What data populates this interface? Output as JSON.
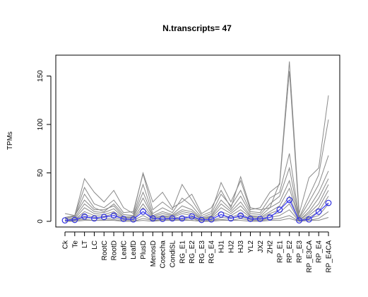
{
  "chart_data": {
    "type": "line",
    "title": "N.transcripts= 47",
    "xlabel": "",
    "ylabel": "TPMs",
    "ylim": [
      -5,
      170
    ],
    "yticks": [
      0,
      50,
      100,
      150
    ],
    "grid": false,
    "legend": "none",
    "categories": [
      "Ck",
      "Te",
      "LT",
      "LC",
      "RootC",
      "RootD",
      "LeafC",
      "LeafD",
      "PlusD",
      "MenosD",
      "Cosecha",
      "CondiSL",
      "RG_E1",
      "RG_E2",
      "RG_E3",
      "RG_E4",
      "HJ1",
      "HJ2",
      "HJ3",
      "YL2",
      "JX2",
      "ZH2",
      "RP_E1",
      "RP_E2",
      "RP_E3",
      "RP_E3CA",
      "RP_E4",
      "RP_E4CA"
    ],
    "series": [
      {
        "values": [
          8,
          6,
          44,
          30,
          20,
          32,
          14,
          8,
          50,
          20,
          30,
          14,
          20,
          28,
          8,
          14,
          32,
          14,
          46,
          14,
          12,
          14,
          40,
          165,
          8,
          45,
          55,
          130
        ]
      },
      {
        "values": [
          4,
          6,
          35,
          18,
          14,
          22,
          9,
          10,
          49,
          12,
          20,
          12,
          38,
          22,
          6,
          10,
          40,
          20,
          42,
          12,
          14,
          30,
          38,
          155,
          4,
          26,
          48,
          105
        ]
      },
      {
        "values": [
          3,
          5,
          28,
          14,
          10,
          18,
          7,
          6,
          38,
          8,
          14,
          9,
          24,
          16,
          4,
          8,
          28,
          16,
          32,
          10,
          9,
          24,
          30,
          70,
          3,
          20,
          38,
          68
        ]
      },
      {
        "values": [
          2,
          6,
          22,
          12,
          12,
          16,
          5,
          5,
          30,
          6,
          10,
          7,
          16,
          12,
          3,
          6,
          22,
          12,
          26,
          8,
          7,
          18,
          26,
          55,
          2,
          14,
          30,
          52
        ]
      },
      {
        "values": [
          1,
          4,
          18,
          10,
          9,
          13,
          4,
          4,
          24,
          5,
          8,
          6,
          12,
          10,
          2,
          5,
          18,
          10,
          20,
          6,
          5,
          14,
          20,
          42,
          1,
          10,
          24,
          44
        ]
      },
      {
        "values": [
          1,
          3,
          14,
          8,
          7,
          10,
          3,
          3,
          18,
          4,
          6,
          5,
          10,
          8,
          2,
          4,
          14,
          8,
          16,
          5,
          4,
          10,
          16,
          34,
          1,
          8,
          18,
          38
        ]
      },
      {
        "values": [
          0,
          2,
          10,
          6,
          5,
          8,
          2,
          2,
          14,
          3,
          5,
          4,
          8,
          6,
          1,
          3,
          10,
          6,
          12,
          4,
          3,
          8,
          12,
          26,
          0,
          6,
          14,
          32
        ]
      },
      {
        "values": [
          0,
          2,
          7,
          4,
          4,
          6,
          2,
          2,
          10,
          2,
          4,
          3,
          5,
          4,
          1,
          2,
          7,
          4,
          8,
          3,
          2,
          6,
          9,
          18,
          0,
          4,
          10,
          26
        ]
      },
      {
        "values": [
          0,
          1,
          4,
          3,
          2,
          4,
          1,
          1,
          6,
          1,
          2,
          2,
          3,
          3,
          0,
          1,
          4,
          3,
          5,
          2,
          1,
          4,
          6,
          12,
          0,
          3,
          6,
          18
        ]
      },
      {
        "values": [
          0,
          1,
          2,
          1,
          1,
          2,
          0,
          0,
          3,
          1,
          1,
          1,
          2,
          1,
          0,
          1,
          2,
          1,
          3,
          1,
          1,
          2,
          3,
          6,
          0,
          1,
          3,
          10
        ]
      },
      {
        "values": [
          0,
          0,
          1,
          1,
          1,
          1,
          0,
          0,
          1,
          0,
          1,
          1,
          1,
          1,
          0,
          0,
          1,
          1,
          1,
          0,
          0,
          1,
          1,
          3,
          0,
          1,
          1,
          4
        ]
      }
    ],
    "mean_series": {
      "values": [
        1,
        1.5,
        5,
        3,
        4.5,
        6,
        2.5,
        2,
        10,
        3,
        2.5,
        3,
        3,
        5,
        1.5,
        2,
        7,
        3,
        6,
        2.5,
        2.5,
        4,
        12,
        22,
        1,
        2,
        10,
        19
      ]
    },
    "colors": {
      "series_line": "#8a8a8a",
      "mean_line": "#4040ff",
      "mean_marker": "#3030e0",
      "axis": "#000000"
    }
  }
}
